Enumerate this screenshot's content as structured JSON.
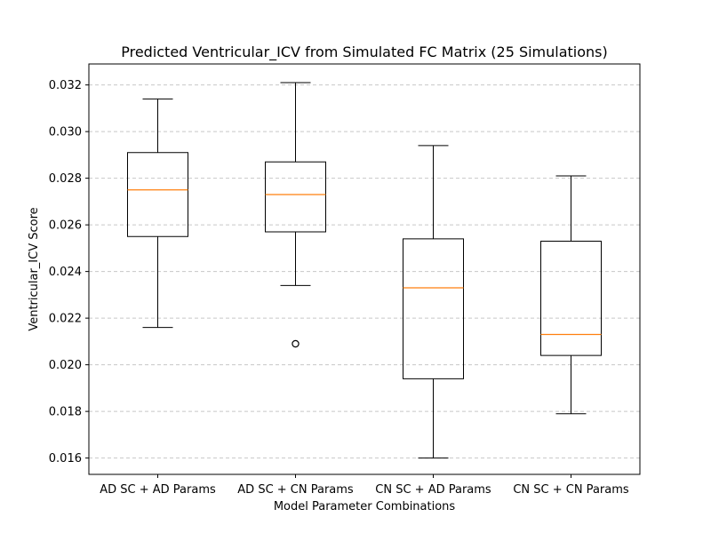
{
  "chart_data": {
    "type": "boxplot",
    "title": "Predicted Ventricular_ICV from Simulated FC Matrix (25 Simulations)",
    "xlabel": "Model Parameter Combinations",
    "ylabel": "Ventricular_ICV Score",
    "ylim": [
      0.0153,
      0.0329
    ],
    "yticks": [
      "0.016",
      "0.018",
      "0.020",
      "0.022",
      "0.024",
      "0.026",
      "0.028",
      "0.030",
      "0.032"
    ],
    "grid": "y-dashed",
    "categories": [
      "AD SC + AD Params",
      "AD SC + CN Params",
      "CN SC + AD Params",
      "CN SC + CN Params"
    ],
    "boxes": [
      {
        "whisker_low": 0.0216,
        "q1": 0.0255,
        "median": 0.0275,
        "q3": 0.0291,
        "whisker_high": 0.0314,
        "outliers": []
      },
      {
        "whisker_low": 0.0234,
        "q1": 0.0257,
        "median": 0.0273,
        "q3": 0.0287,
        "whisker_high": 0.0321,
        "outliers": [
          0.0209
        ]
      },
      {
        "whisker_low": 0.016,
        "q1": 0.0194,
        "median": 0.0233,
        "q3": 0.0254,
        "whisker_high": 0.0294,
        "outliers": []
      },
      {
        "whisker_low": 0.0179,
        "q1": 0.0204,
        "median": 0.0213,
        "q3": 0.0253,
        "whisker_high": 0.0281,
        "outliers": []
      }
    ],
    "colors": {
      "box": "#000000",
      "median": "#ff7f0e",
      "grid": "#c8c8c8"
    }
  }
}
